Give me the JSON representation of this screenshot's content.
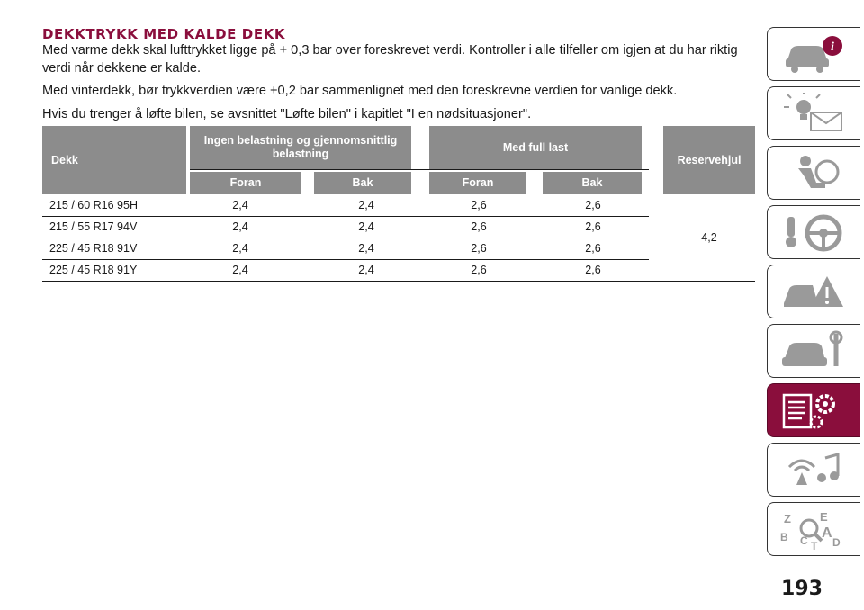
{
  "section": {
    "title": "DEKKTRYKK MED KALDE DEKK",
    "paragraphs": [
      "Med varme dekk skal lufttrykket ligge på + 0,3 bar over foreskrevet verdi. Kontroller i alle tilfeller om igjen at du har riktig verdi når dekkene er kalde.",
      "Med vinterdekk, bør trykkverdien være +0,2 bar sammenlignet med den foreskrevne verdien for vanlige dekk.",
      "Hvis du trenger å løfte bilen, se avsnittet \"Løfte bilen\" i kapitlet \"I en nødsituasjoner\"."
    ]
  },
  "table": {
    "headers": {
      "tyre": "Dekk",
      "normal_load": "Ingen belastning og gjennomsnittlig belastning",
      "full_load": "Med full last",
      "spare": "Reservehjul",
      "sub": [
        "Foran",
        "Bak",
        "Foran",
        "Bak"
      ]
    },
    "rows": [
      {
        "tyre": "215 / 60 R16 95H",
        "values": [
          "2,4",
          "2,4",
          "2,6",
          "2,6"
        ]
      },
      {
        "tyre": "215 / 55 R17 94V",
        "values": [
          "2,4",
          "2,4",
          "2,6",
          "2,6"
        ]
      },
      {
        "tyre": "225 / 45 R18 91V",
        "values": [
          "2,4",
          "2,4",
          "2,6",
          "2,6"
        ]
      },
      {
        "tyre": "225 / 45 R18 91Y",
        "values": [
          "2,4",
          "2,4",
          "2,6",
          "2,6"
        ]
      }
    ],
    "spare_value": "4,2"
  },
  "sidebar": {
    "tabs": [
      {
        "icon": "car-info-icon",
        "active": false
      },
      {
        "icon": "warning-lights-icon",
        "active": false
      },
      {
        "icon": "seat-airbag-icon",
        "active": false
      },
      {
        "icon": "key-steering-wheel-icon",
        "active": false
      },
      {
        "icon": "car-accident-warning-icon",
        "active": false
      },
      {
        "icon": "car-wrench-icon",
        "active": false
      },
      {
        "icon": "technical-data-gears-icon",
        "active": true
      },
      {
        "icon": "multimedia-icon",
        "active": false
      },
      {
        "icon": "alphabetical-index-icon",
        "active": false
      }
    ],
    "index_letters": [
      "Z",
      "E",
      "A",
      "B",
      "C",
      "D",
      "T"
    ]
  },
  "page_number": "193",
  "colors": {
    "accent": "#8a0e3c",
    "header_gray": "#8c8c8c",
    "text": "#1a1a1a"
  }
}
